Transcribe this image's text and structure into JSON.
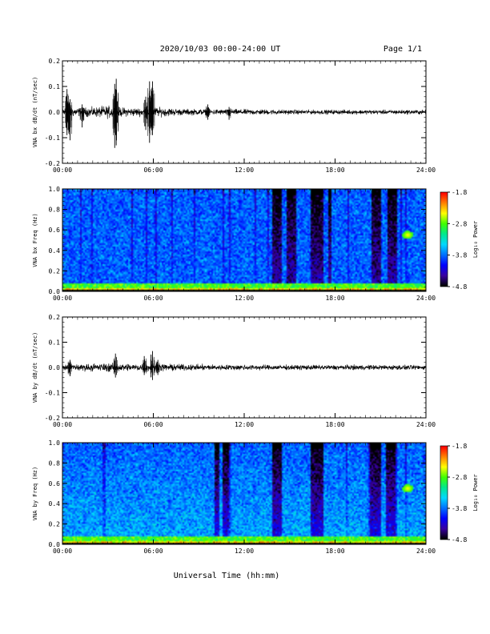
{
  "header": {
    "title": "2020/10/03  00:00-24:00 UT",
    "page": "Page 1/1"
  },
  "footer": {
    "xlabel": "Universal Time (hh:mm)"
  },
  "colors": {
    "colormap": [
      "#000000",
      "#3a00a0",
      "#0000ff",
      "#0070ff",
      "#00d8ff",
      "#00e890",
      "#40ff00",
      "#ffff00",
      "#ff8000",
      "#ff0000"
    ],
    "trace": "#000000"
  },
  "chart_data": [
    {
      "type": "line",
      "panel": "bx-waveform",
      "ylabel": "VNA bx dB/dt (nT/sec)",
      "xlim": [
        "00:00",
        "24:00"
      ],
      "ylim": [
        -0.2,
        0.2
      ],
      "xticks": [
        "00:00",
        "06:00",
        "12:00",
        "18:00",
        "24:00"
      ],
      "yticks": [
        "-0.2",
        "-0.1",
        "0.0",
        "0.1",
        "0.2"
      ],
      "noise_envelope": {
        "x_hours": [
          0,
          1,
          2,
          3,
          4,
          5,
          6,
          7,
          8,
          10,
          12,
          14,
          16,
          18,
          20,
          22,
          24
        ],
        "amplitude": [
          0.018,
          0.014,
          0.015,
          0.02,
          0.014,
          0.013,
          0.016,
          0.013,
          0.01,
          0.009,
          0.009,
          0.008,
          0.007,
          0.007,
          0.007,
          0.007,
          0.007
        ]
      },
      "bursts": [
        {
          "x_hour": 0.3,
          "min": -0.09,
          "max": 0.09
        },
        {
          "x_hour": 0.5,
          "min": -0.11,
          "max": 0.05
        },
        {
          "x_hour": 1.3,
          "min": -0.06,
          "max": 0.03
        },
        {
          "x_hour": 3.45,
          "min": -0.14,
          "max": 0.11
        },
        {
          "x_hour": 3.55,
          "min": -0.13,
          "max": 0.13
        },
        {
          "x_hour": 5.5,
          "min": -0.07,
          "max": 0.06
        },
        {
          "x_hour": 5.75,
          "min": -0.12,
          "max": 0.12
        },
        {
          "x_hour": 5.95,
          "min": -0.09,
          "max": 0.12
        },
        {
          "x_hour": 9.6,
          "min": -0.03,
          "max": 0.03
        },
        {
          "x_hour": 11.0,
          "min": -0.03,
          "max": 0.02
        }
      ]
    },
    {
      "type": "heatmap",
      "panel": "bx-spectrogram",
      "ylabel": "VNA bx Freq (Hz)",
      "xlim": [
        "00:00",
        "24:00"
      ],
      "ylim": [
        0.0,
        1.0
      ],
      "xticks": [
        "00:00",
        "06:00",
        "12:00",
        "18:00",
        "24:00"
      ],
      "yticks": [
        "0.0",
        "0.2",
        "0.4",
        "0.6",
        "0.8",
        "1.0"
      ],
      "colorbar": {
        "label": "Log₁₀ Power",
        "range": [
          -4.8,
          -1.8
        ],
        "ticks": [
          "-1.8",
          "-2.8",
          "-3.8",
          "-4.8"
        ]
      },
      "low_power_bands_hours": [
        [
          13.8,
          14.5
        ],
        [
          14.8,
          15.4
        ],
        [
          16.4,
          17.2
        ],
        [
          17.5,
          17.8
        ],
        [
          20.4,
          21.0
        ],
        [
          21.5,
          22.1
        ]
      ],
      "high_power_spots": [
        {
          "x_hour": 22.8,
          "freq_hz": 0.55
        }
      ]
    },
    {
      "type": "line",
      "panel": "by-waveform",
      "ylabel": "VNA by dB/dt (nT/sec)",
      "xlim": [
        "00:00",
        "24:00"
      ],
      "ylim": [
        -0.2,
        0.2
      ],
      "xticks": [
        "00:00",
        "06:00",
        "12:00",
        "18:00",
        "24:00"
      ],
      "yticks": [
        "-0.2",
        "-0.1",
        "0.0",
        "0.1",
        "0.2"
      ],
      "noise_envelope": {
        "x_hours": [
          0,
          1,
          2,
          3,
          4,
          5,
          6,
          7,
          8,
          10,
          12,
          14,
          16,
          18,
          20,
          22,
          24
        ],
        "amplitude": [
          0.014,
          0.012,
          0.012,
          0.014,
          0.012,
          0.012,
          0.013,
          0.011,
          0.01,
          0.009,
          0.009,
          0.008,
          0.008,
          0.008,
          0.008,
          0.008,
          0.007
        ]
      },
      "bursts": [
        {
          "x_hour": 0.5,
          "min": -0.035,
          "max": 0.03
        },
        {
          "x_hour": 3.5,
          "min": -0.04,
          "max": 0.055
        },
        {
          "x_hour": 5.4,
          "min": -0.03,
          "max": 0.045
        },
        {
          "x_hour": 5.95,
          "min": -0.05,
          "max": 0.065
        },
        {
          "x_hour": 6.3,
          "min": -0.03,
          "max": 0.03
        }
      ]
    },
    {
      "type": "heatmap",
      "panel": "by-spectrogram",
      "ylabel": "VNA by Freq (Hz)",
      "xlim": [
        "00:00",
        "24:00"
      ],
      "ylim": [
        0.0,
        1.0
      ],
      "xticks": [
        "00:00",
        "06:00",
        "12:00",
        "18:00",
        "24:00"
      ],
      "yticks": [
        "0.0",
        "0.2",
        "0.4",
        "0.6",
        "0.8",
        "1.0"
      ],
      "colorbar": {
        "label": "Log₁₀ Power",
        "range": [
          -4.8,
          -1.8
        ],
        "ticks": [
          "-1.8",
          "-2.8",
          "-3.8",
          "-4.8"
        ]
      },
      "low_power_bands_hours": [
        [
          10.0,
          10.4
        ],
        [
          10.6,
          11.0
        ],
        [
          13.8,
          14.5
        ],
        [
          16.4,
          17.2
        ],
        [
          20.3,
          21.0
        ],
        [
          21.4,
          22.0
        ]
      ],
      "high_power_spots": [
        {
          "x_hour": 22.8,
          "freq_hz": 0.55
        }
      ]
    }
  ]
}
